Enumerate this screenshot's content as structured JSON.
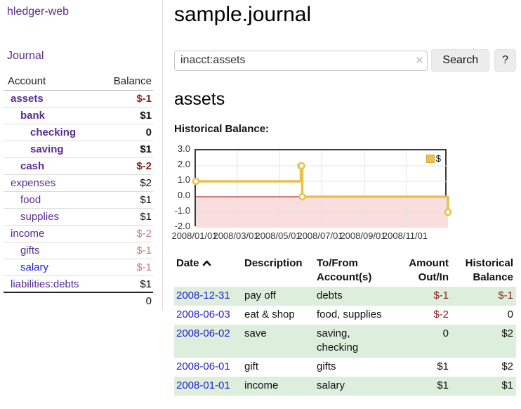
{
  "colors": {
    "purple": "#5b2c92",
    "blue": "#2222cc",
    "neg": "#8a1f1f",
    "neg-muted": "#c17f7f",
    "gold": "#e8c24b",
    "pink": "#fadddd",
    "row-green": "#ddeedd",
    "zero-line": "#a00000"
  },
  "sidebar": {
    "brand": "hledger-web",
    "journal_link": "Journal",
    "accounts": {
      "header_account": "Account",
      "header_balance": "Balance",
      "rows": [
        {
          "name": "assets",
          "balance": "$-1"
        },
        {
          "name": "bank",
          "balance": "$1"
        },
        {
          "name": "checking",
          "balance": "0"
        },
        {
          "name": "saving",
          "balance": "$1"
        },
        {
          "name": "cash",
          "balance": "$-2"
        },
        {
          "name": "expenses",
          "balance": "$2"
        },
        {
          "name": "food",
          "balance": "$1"
        },
        {
          "name": "supplies",
          "balance": "$1"
        },
        {
          "name": "income",
          "balance": "$-2"
        },
        {
          "name": "gifts",
          "balance": "$-1"
        },
        {
          "name": "salary",
          "balance": "$-1"
        },
        {
          "name": "liabilities:debts",
          "balance": "$1"
        }
      ],
      "total": "0"
    }
  },
  "main": {
    "title": "sample.journal",
    "search": {
      "value": "inacct:assets",
      "clear_icon": "×",
      "search_button": "Search",
      "help_button": "?"
    },
    "account_heading": "assets",
    "section_label": "Historical Balance:"
  },
  "chart_data": {
    "type": "line",
    "step": true,
    "title": "Historical Balance:",
    "series": [
      {
        "name": "$",
        "color": "#e8c24b",
        "points": [
          [
            "2008-01-01",
            1
          ],
          [
            "2008-06-01",
            2
          ],
          [
            "2008-06-02",
            2
          ],
          [
            "2008-06-03",
            0
          ],
          [
            "2008-12-31",
            -1
          ]
        ]
      }
    ],
    "x_range": [
      "2008-01-01",
      "2008-12-31"
    ],
    "x_ticks": [
      "2008/01/01",
      "2008/03/01",
      "2008/05/01",
      "2008/07/01",
      "2008/09/01",
      "2008/11/01"
    ],
    "y_ticks": [
      "3.0",
      "2.0",
      "1.0",
      "0.0",
      "-1.0",
      "-2.0"
    ],
    "ylim": [
      -2,
      3
    ],
    "grid": true,
    "below_zero_fill": "#fadddd",
    "legend": {
      "label": "$",
      "position": "top-right"
    }
  },
  "register": {
    "headers": {
      "date": "Date",
      "description": "Description",
      "accounts": "To/From Account(s)",
      "amount": "Amount Out/In",
      "balance": "Historical Balance"
    },
    "rows": [
      {
        "date": "2008-12-31",
        "description": "pay off",
        "accounts": "debts",
        "amount": "$-1",
        "balance": "$-1"
      },
      {
        "date": "2008-06-03",
        "description": "eat & shop",
        "accounts": "food, supplies",
        "amount": "$-2",
        "balance": "0"
      },
      {
        "date": "2008-06-02",
        "description": "save",
        "accounts": "saving, checking",
        "amount": "0",
        "balance": "$2"
      },
      {
        "date": "2008-06-01",
        "description": "gift",
        "accounts": "gifts",
        "amount": "$1",
        "balance": "$2"
      },
      {
        "date": "2008-01-01",
        "description": "income",
        "accounts": "salary",
        "amount": "$1",
        "balance": "$1"
      }
    ]
  }
}
